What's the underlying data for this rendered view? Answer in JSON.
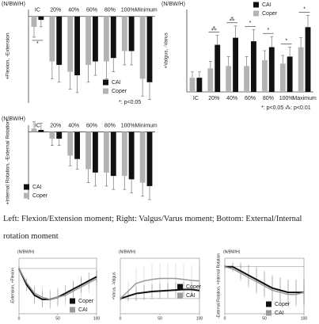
{
  "chart_data": [
    {
      "type": "bar",
      "y_unit": "(N/BW/H)",
      "y_label": "+Flexion, -Extension",
      "categories": [
        "IC",
        "20%",
        "40%",
        "60%",
        "80%",
        "100%",
        "Minimum"
      ],
      "series": [
        {
          "name": "Coper",
          "color": "#b3b3b3",
          "values": [
            -0.03,
            -0.13,
            -0.16,
            -0.14,
            -0.13,
            -0.1,
            -0.18
          ],
          "errors": [
            0.03,
            0.05,
            0.05,
            0.05,
            0.05,
            0.04,
            0.05
          ]
        },
        {
          "name": "CAI",
          "color": "#111111",
          "values": [
            -0.01,
            -0.14,
            -0.17,
            -0.13,
            -0.12,
            -0.1,
            -0.19
          ],
          "errors": [
            0.02,
            0.05,
            0.05,
            0.04,
            0.04,
            0.04,
            0.05
          ]
        }
      ],
      "significance": [
        "*",
        null,
        null,
        null,
        null,
        null,
        null
      ],
      "note": "*: p<0.05",
      "ylim": [
        -0.25,
        0.02
      ]
    },
    {
      "type": "bar",
      "y_unit": "(N/BW/H)",
      "y_label": "+Valgus, -Varus",
      "categories": [
        "IC",
        "20%",
        "40%",
        "60%",
        "80%",
        "100%",
        "Maximum"
      ],
      "series": [
        {
          "name": "Coper",
          "color": "#b3b3b3",
          "values": [
            0.012,
            0.02,
            0.022,
            0.022,
            0.027,
            0.024,
            0.038
          ],
          "errors": [
            0.005,
            0.006,
            0.008,
            0.008,
            0.008,
            0.007,
            0.008
          ]
        },
        {
          "name": "CAI",
          "color": "#111111",
          "values": [
            0.012,
            0.04,
            0.046,
            0.043,
            0.038,
            0.03,
            0.055
          ],
          "errors": [
            0.005,
            0.008,
            0.01,
            0.01,
            0.009,
            0.008,
            0.01
          ]
        }
      ],
      "significance": [
        null,
        "⁂",
        "⁂",
        "*",
        "*",
        "*",
        "*"
      ],
      "note": "*: p<0.05  ⁂: p<0.01",
      "ylim": [
        0,
        0.07
      ]
    },
    {
      "type": "bar",
      "y_unit": "(N/BW/H)",
      "y_label": "+Internal Rotation, -External Rotation",
      "categories": [
        "IC",
        "20%",
        "40%",
        "60%",
        "80%",
        "100%",
        "Minimum"
      ],
      "series": [
        {
          "name": "Coper",
          "color": "#b3b3b3",
          "values": [
            0.005,
            -0.01,
            -0.035,
            -0.055,
            -0.06,
            -0.065,
            -0.075
          ],
          "errors": [
            0.01,
            0.01,
            0.015,
            0.02,
            0.02,
            0.02,
            0.02
          ]
        },
        {
          "name": "CAI",
          "color": "#111111",
          "values": [
            0.003,
            -0.01,
            -0.04,
            -0.06,
            -0.065,
            -0.07,
            -0.08
          ],
          "errors": [
            0.01,
            0.01,
            0.015,
            0.02,
            0.02,
            0.02,
            0.02
          ]
        }
      ],
      "ylim": [
        -0.1,
        0.01
      ]
    },
    {
      "type": "line",
      "y_unit": "(N/BW/H)",
      "y_label": "-Extension, +Flexion",
      "x": [
        0,
        10,
        20,
        30,
        40,
        50,
        60,
        70,
        80,
        90,
        100
      ],
      "xlim": [
        0,
        100
      ],
      "xticks": [
        0,
        50,
        100
      ],
      "ylim": [
        -0.22,
        0.05
      ],
      "series": [
        {
          "name": "Coper",
          "color": "#111111",
          "values": [
            0,
            -0.08,
            -0.13,
            -0.15,
            -0.15,
            -0.14,
            -0.12,
            -0.1,
            -0.08,
            -0.06,
            -0.04
          ],
          "sd": [
            0.01,
            0.03,
            0.04,
            0.04,
            0.04,
            0.04,
            0.04,
            0.04,
            0.04,
            0.04,
            0.03
          ]
        },
        {
          "name": "CAI",
          "color": "#9a9a9a",
          "values": [
            0,
            -0.07,
            -0.12,
            -0.14,
            -0.15,
            -0.14,
            -0.13,
            -0.11,
            -0.09,
            -0.07,
            -0.05
          ],
          "sd": [
            0.01,
            0.03,
            0.04,
            0.05,
            0.05,
            0.05,
            0.05,
            0.05,
            0.05,
            0.05,
            0.04
          ]
        }
      ]
    },
    {
      "type": "line",
      "y_unit": "(N/BW/H)",
      "y_label": "+Varus, -Valgus",
      "x": [
        0,
        10,
        20,
        30,
        40,
        50,
        60,
        70,
        80,
        90,
        100
      ],
      "xlim": [
        0,
        100
      ],
      "xticks": [
        0,
        50,
        100
      ],
      "ylim": [
        -0.03,
        0.08
      ],
      "series": [
        {
          "name": "Coper",
          "color": "#111111",
          "values": [
            0,
            0.005,
            0.01,
            0.012,
            0.014,
            0.015,
            0.016,
            0.017,
            0.018,
            0.018,
            0.016
          ],
          "sd": [
            0.005,
            0.01,
            0.015,
            0.015,
            0.015,
            0.015,
            0.015,
            0.015,
            0.015,
            0.015,
            0.015
          ]
        },
        {
          "name": "CAI",
          "color": "#9a9a9a",
          "values": [
            0,
            0.015,
            0.03,
            0.035,
            0.038,
            0.04,
            0.04,
            0.04,
            0.038,
            0.036,
            0.035
          ],
          "sd": [
            0.005,
            0.02,
            0.03,
            0.03,
            0.03,
            0.03,
            0.03,
            0.03,
            0.03,
            0.03,
            0.03
          ]
        }
      ]
    },
    {
      "type": "line",
      "y_unit": "(N/BW/H)",
      "y_label": "-External Rotation, +Internal Rotation",
      "x": [
        0,
        10,
        20,
        30,
        40,
        50,
        60,
        70,
        80,
        90,
        100
      ],
      "xlim": [
        0,
        100
      ],
      "xticks": [
        0,
        50,
        100
      ],
      "ylim": [
        -0.11,
        0.02
      ],
      "series": [
        {
          "name": "Coper",
          "color": "#111111",
          "values": [
            0,
            0,
            -0.01,
            -0.02,
            -0.03,
            -0.04,
            -0.05,
            -0.055,
            -0.06,
            -0.06,
            -0.06
          ],
          "sd": [
            0.005,
            0.01,
            0.02,
            0.025,
            0.03,
            0.03,
            0.03,
            0.03,
            0.03,
            0.03,
            0.03
          ]
        },
        {
          "name": "CAI",
          "color": "#9a9a9a",
          "values": [
            0,
            -0.005,
            -0.015,
            -0.025,
            -0.035,
            -0.045,
            -0.055,
            -0.06,
            -0.065,
            -0.065,
            -0.06
          ],
          "sd": [
            0.005,
            0.01,
            0.02,
            0.025,
            0.03,
            0.03,
            0.03,
            0.03,
            0.03,
            0.03,
            0.03
          ]
        }
      ]
    }
  ],
  "caption": "Left: Flexion/Extension moment; Right: Valgus/Varus moment; Bottom: External/Internal rotation moment"
}
